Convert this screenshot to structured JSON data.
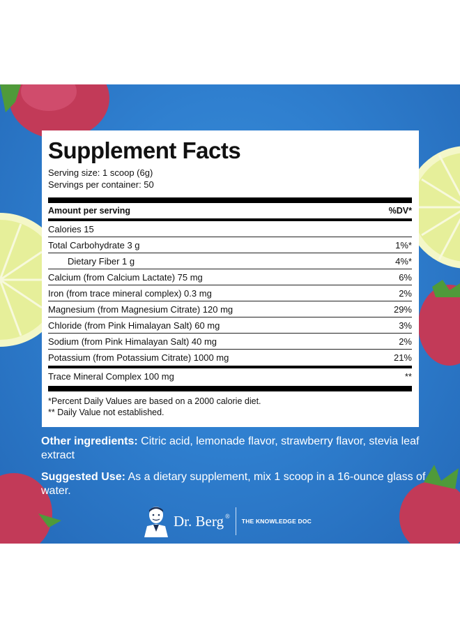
{
  "title": "Supplement Facts",
  "serving_size": "Serving size: 1 scoop (6g)",
  "servings_per_container": "Servings per container: 50",
  "header": {
    "amount": "Amount per serving",
    "dv": "%DV*"
  },
  "rows": [
    {
      "name": "Calories 15",
      "dv": ""
    },
    {
      "name": "Total Carbohydrate 3 g",
      "dv": "1%*"
    },
    {
      "name": "Dietary Fiber 1 g",
      "dv": "4%*"
    },
    {
      "name": "Calcium (from Calcium Lactate) 75 mg",
      "dv": "6%"
    },
    {
      "name": "Iron (from trace mineral complex) 0.3 mg",
      "dv": "2%"
    },
    {
      "name": "Magnesium (from Magnesium Citrate) 120 mg",
      "dv": "29%"
    },
    {
      "name": "Chloride (from Pink Himalayan Salt) 60 mg",
      "dv": "3%"
    },
    {
      "name": "Sodium (from Pink Himalayan Salt) 40 mg",
      "dv": "2%"
    },
    {
      "name": "Potassium (from Potassium Citrate) 1000 mg",
      "dv": "21%"
    },
    {
      "name": "Trace Mineral Complex 100 mg",
      "dv": "**"
    }
  ],
  "footnotes": [
    "*Percent Daily Values are based on a 2000 calorie diet.",
    "** Daily Value not established."
  ],
  "other_ingredients": {
    "label": "Other ingredients:",
    "text": " Citric acid, lemonade flavor, strawberry flavor, stevia leaf extract"
  },
  "suggested_use": {
    "label": "Suggested Use:",
    "text": " As a dietary supplement, mix 1 scoop in a 16-ounce glass of water."
  },
  "brand": {
    "name": "Dr. Berg",
    "registered": "®",
    "tagline": "THE KNOWLEDGE DOC"
  },
  "colors": {
    "background": "#2f7fcf",
    "panel": "#ffffff",
    "text_on_blue": "#ffffff",
    "strawberry": "#c83a5a",
    "lemon": "#e9f2a8"
  }
}
